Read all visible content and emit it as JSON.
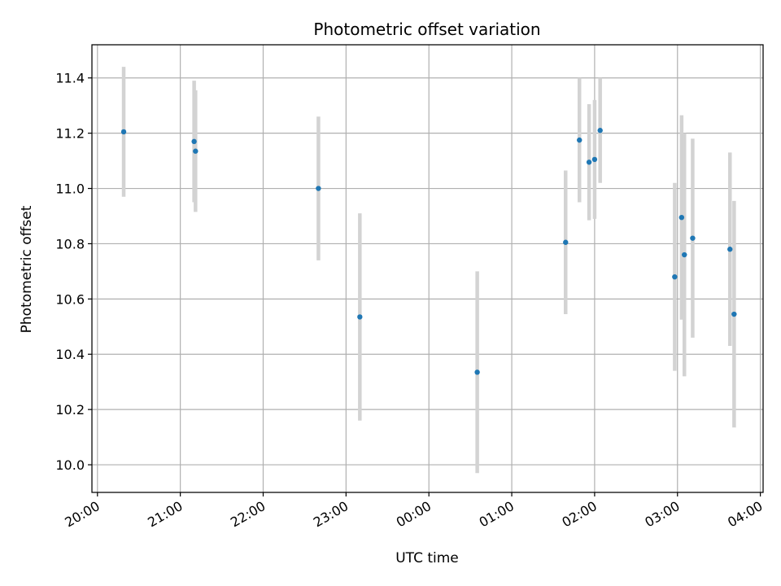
{
  "chart_data": {
    "type": "scatter",
    "title": "Photometric offset variation",
    "xlabel": "UTC time",
    "ylabel": "Photometric offset",
    "x_axis_kind": "time",
    "xlim": [
      "19:56",
      "04:02"
    ],
    "ylim": [
      9.9,
      11.52
    ],
    "grid": true,
    "xticks": [
      "20:00",
      "21:00",
      "22:00",
      "23:00",
      "00:00",
      "01:00",
      "02:00",
      "03:00",
      "04:00"
    ],
    "yticks": [
      "10.0",
      "10.2",
      "10.4",
      "10.6",
      "10.8",
      "11.0",
      "11.2",
      "11.4"
    ],
    "colors": {
      "points": "#1f77b4",
      "error_bars": "#d3d3d3",
      "grid": "#b0b0b0"
    },
    "series": [
      {
        "points": [
          {
            "x": "20:19",
            "y": 11.205,
            "ylow": 10.97,
            "yhigh": 11.44
          },
          {
            "x": "21:10",
            "y": 11.17,
            "ylow": 10.95,
            "yhigh": 11.39
          },
          {
            "x": "21:11",
            "y": 11.135,
            "ylow": 10.915,
            "yhigh": 11.355
          },
          {
            "x": "22:40",
            "y": 11.0,
            "ylow": 10.74,
            "yhigh": 11.26
          },
          {
            "x": "23:10",
            "y": 10.535,
            "ylow": 10.16,
            "yhigh": 10.91
          },
          {
            "x": "00:35",
            "y": 10.335,
            "ylow": 9.97,
            "yhigh": 10.7
          },
          {
            "x": "01:39",
            "y": 10.805,
            "ylow": 10.545,
            "yhigh": 11.065
          },
          {
            "x": "01:49",
            "y": 11.175,
            "ylow": 10.95,
            "yhigh": 11.4
          },
          {
            "x": "01:56",
            "y": 11.095,
            "ylow": 10.885,
            "yhigh": 11.305
          },
          {
            "x": "02:00",
            "y": 11.105,
            "ylow": 10.89,
            "yhigh": 11.32
          },
          {
            "x": "02:04",
            "y": 11.21,
            "ylow": 11.02,
            "yhigh": 11.4
          },
          {
            "x": "02:58",
            "y": 10.68,
            "ylow": 10.34,
            "yhigh": 11.02
          },
          {
            "x": "03:03",
            "y": 10.895,
            "ylow": 10.525,
            "yhigh": 11.265
          },
          {
            "x": "03:05",
            "y": 10.76,
            "ylow": 10.32,
            "yhigh": 11.2
          },
          {
            "x": "03:11",
            "y": 10.82,
            "ylow": 10.46,
            "yhigh": 11.18
          },
          {
            "x": "03:38",
            "y": 10.78,
            "ylow": 10.43,
            "yhigh": 11.13
          },
          {
            "x": "03:41",
            "y": 10.545,
            "ylow": 10.135,
            "yhigh": 10.955
          }
        ]
      }
    ]
  }
}
